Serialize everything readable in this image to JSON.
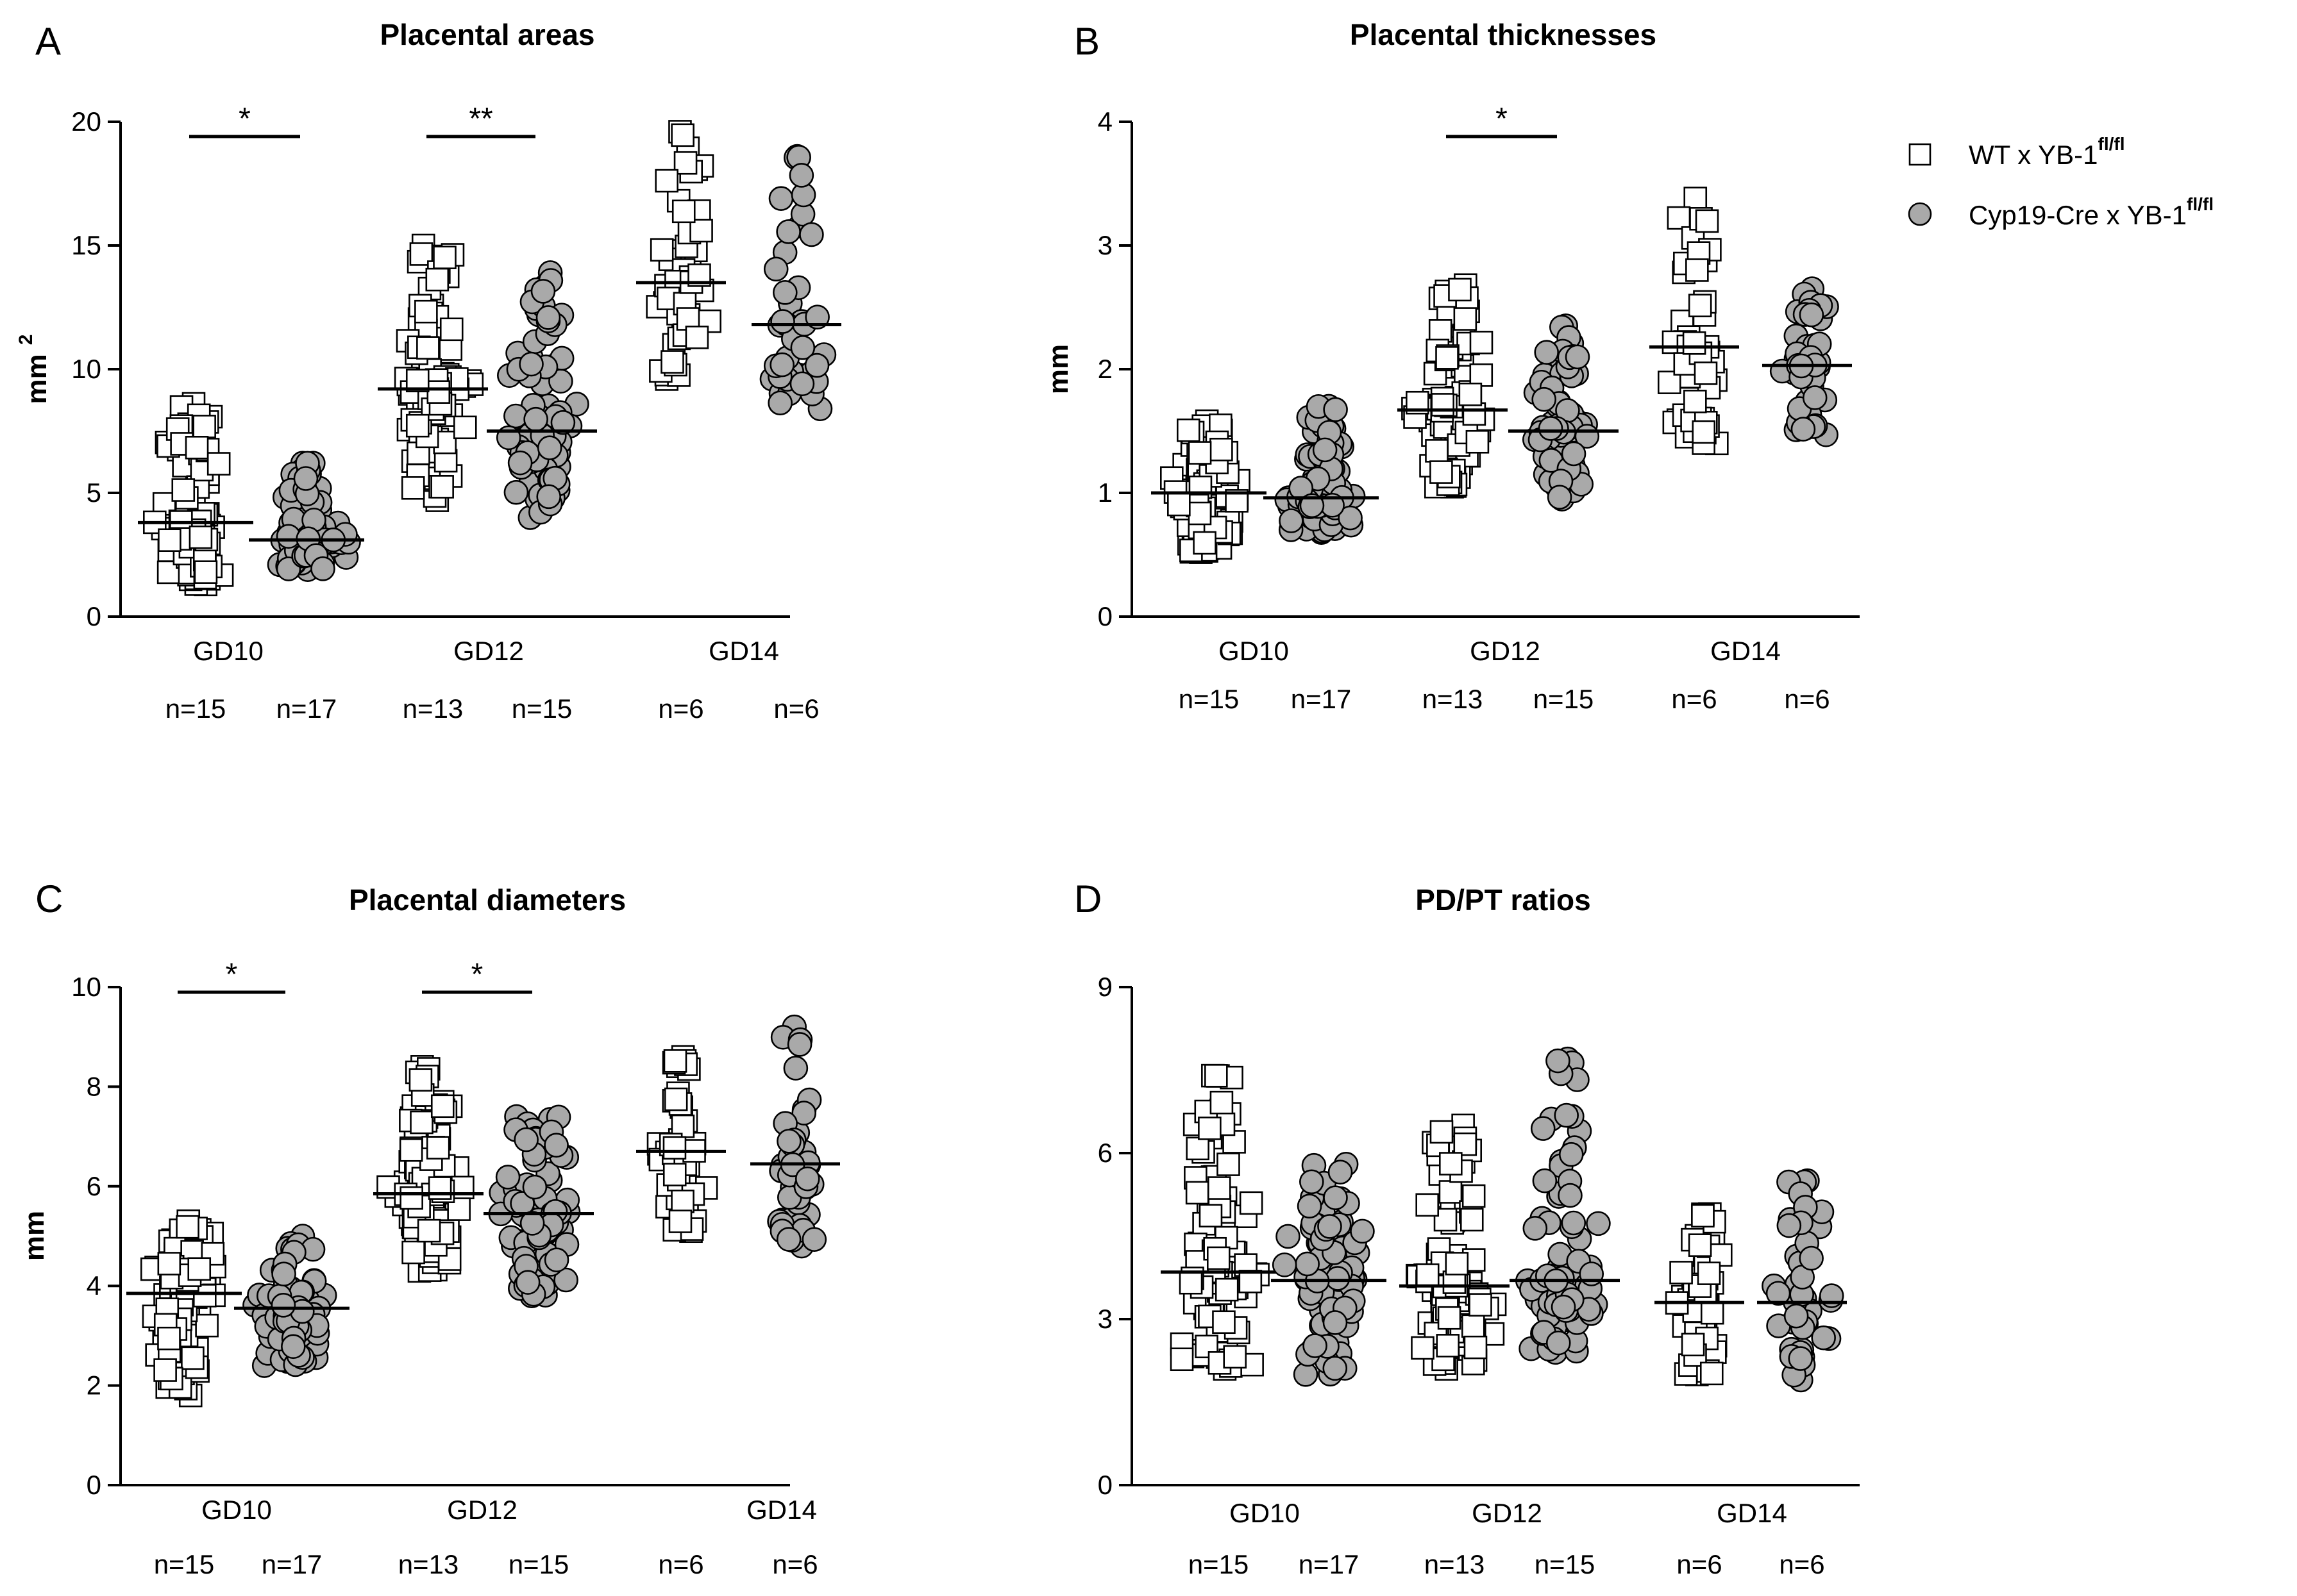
{
  "legend": {
    "wt": {
      "label": "WT x YB-1",
      "sup": "fl/fl",
      "marker": "open-square"
    },
    "cyp": {
      "label": "Cyp19-Cre x YB-1",
      "sup": "fl/fl",
      "marker": "gray-circle"
    }
  },
  "colors": {
    "wt_fill": "#ffffff",
    "cyp_fill": "#a9a9a9",
    "stroke": "#000000"
  },
  "chart_data": [
    {
      "id": "A",
      "panel_letter": "A",
      "type": "scatter",
      "title": "Placental areas",
      "ylabel": "mm",
      "ylabel_sup": "2",
      "ylim": [
        0,
        20
      ],
      "yticks": [
        "0",
        "5",
        "10",
        "15",
        "20"
      ],
      "categories": [
        "GD10",
        "GD12",
        "GD14"
      ],
      "n_labels": [
        [
          "n=15",
          "n=17"
        ],
        [
          "n=13",
          "n=15"
        ],
        [
          "n=6",
          "n=6"
        ]
      ],
      "significance": [
        {
          "group": "GD10",
          "label": "*"
        },
        {
          "group": "GD12",
          "label": "**"
        }
      ],
      "series": [
        {
          "name": "WT x YB-1fl/fl",
          "medians": [
            3.8,
            9.2,
            13.5
          ],
          "ranges": [
            [
              1.3,
              8.6
            ],
            [
              4.7,
              15.0
            ],
            [
              9.6,
              19.6
            ]
          ]
        },
        {
          "name": "Cyp19-Cre x YB-1fl/fl",
          "medians": [
            3.1,
            7.5,
            11.8
          ],
          "ranges": [
            [
              1.9,
              6.2
            ],
            [
              4.0,
              13.9
            ],
            [
              8.4,
              18.6
            ]
          ]
        }
      ]
    },
    {
      "id": "B",
      "panel_letter": "B",
      "type": "scatter",
      "title": "Placental thicknesses",
      "ylabel": "mm",
      "ylabel_sup": "",
      "ylim": [
        0,
        4
      ],
      "yticks": [
        "0",
        "1",
        "2",
        "3",
        "4"
      ],
      "categories": [
        "GD10",
        "GD12",
        "GD14"
      ],
      "n_labels": [
        [
          "n=15",
          "n=17"
        ],
        [
          "n=13",
          "n=15"
        ],
        [
          "n=6",
          "n=6"
        ]
      ],
      "significance": [
        {
          "group": "GD12",
          "label": "*"
        }
      ],
      "series": [
        {
          "name": "WT x YB-1fl/fl",
          "medians": [
            1.0,
            1.67,
            2.18
          ],
          "ranges": [
            [
              0.52,
              1.58
            ],
            [
              1.05,
              2.68
            ],
            [
              1.4,
              3.38
            ]
          ]
        },
        {
          "name": "Cyp19-Cre x YB-1fl/fl",
          "medians": [
            0.96,
            1.5,
            2.03
          ],
          "ranges": [
            [
              0.68,
              1.7
            ],
            [
              0.95,
              2.35
            ],
            [
              1.47,
              2.65
            ]
          ]
        }
      ]
    },
    {
      "id": "C",
      "panel_letter": "C",
      "type": "scatter",
      "title": "Placental diameters",
      "ylabel": "mm",
      "ylabel_sup": "",
      "ylim": [
        0,
        10
      ],
      "yticks": [
        "0",
        "2",
        "4",
        "6",
        "8",
        "10"
      ],
      "categories": [
        "GD10",
        "GD12",
        "GD14"
      ],
      "n_labels": [
        [
          "n=15",
          "n=17"
        ],
        [
          "n=13",
          "n=15"
        ],
        [
          "n=6",
          "n=6"
        ]
      ],
      "significance": [
        {
          "group": "GD10",
          "label": "*"
        },
        {
          "group": "GD12",
          "label": "*"
        }
      ],
      "series": [
        {
          "name": "WT x YB-1fl/fl",
          "medians": [
            3.85,
            5.85,
            6.7
          ],
          "ranges": [
            [
              1.8,
              5.3
            ],
            [
              4.3,
              8.4
            ],
            [
              5.1,
              8.6
            ]
          ]
        },
        {
          "name": "Cyp19-Cre x YB-1fl/fl",
          "medians": [
            3.55,
            5.45,
            6.45
          ],
          "ranges": [
            [
              2.4,
              5.0
            ],
            [
              3.8,
              7.4
            ],
            [
              4.8,
              9.2
            ]
          ]
        }
      ]
    },
    {
      "id": "D",
      "panel_letter": "D",
      "type": "scatter",
      "title": "PD/PT ratios",
      "ylabel": "",
      "ylabel_sup": "",
      "ylim": [
        0,
        9
      ],
      "yticks": [
        "0",
        "3",
        "6",
        "9"
      ],
      "categories": [
        "GD10",
        "GD12",
        "GD14"
      ],
      "n_labels": [
        [
          "n=15",
          "n=17"
        ],
        [
          "n=13",
          "n=15"
        ],
        [
          "n=6",
          "n=6"
        ]
      ],
      "significance": [],
      "series": [
        {
          "name": "WT x YB-1fl/fl",
          "medians": [
            3.85,
            3.6,
            3.3
          ],
          "ranges": [
            [
              2.1,
              7.4
            ],
            [
              2.1,
              6.5
            ],
            [
              2.0,
              4.9
            ]
          ]
        },
        {
          "name": "Cyp19-Cre x YB-1fl/fl",
          "medians": [
            3.7,
            3.7,
            3.3
          ],
          "ranges": [
            [
              2.0,
              5.8
            ],
            [
              2.4,
              7.7
            ],
            [
              1.9,
              5.5
            ]
          ]
        }
      ]
    }
  ]
}
